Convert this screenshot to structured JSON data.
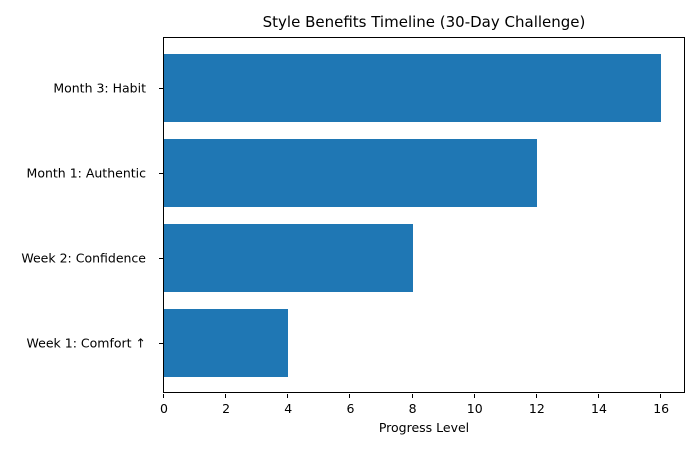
{
  "chart_data": {
    "type": "bar",
    "orientation": "horizontal",
    "title": "Style Benefits Timeline (30-Day Challenge)",
    "xlabel": "Progress Level",
    "ylabel": "",
    "categories": [
      "Week 1: Comfort ↑",
      "Week 2: Confidence",
      "Month 1: Authentic",
      "Month 3: Habit"
    ],
    "values": [
      4,
      8,
      12,
      16
    ],
    "xlim": [
      0,
      16.8
    ],
    "xticks": [
      "0",
      "2",
      "4",
      "6",
      "8",
      "10",
      "12",
      "14",
      "16"
    ],
    "color": "#1f77b4",
    "grid": false,
    "legend": null
  }
}
